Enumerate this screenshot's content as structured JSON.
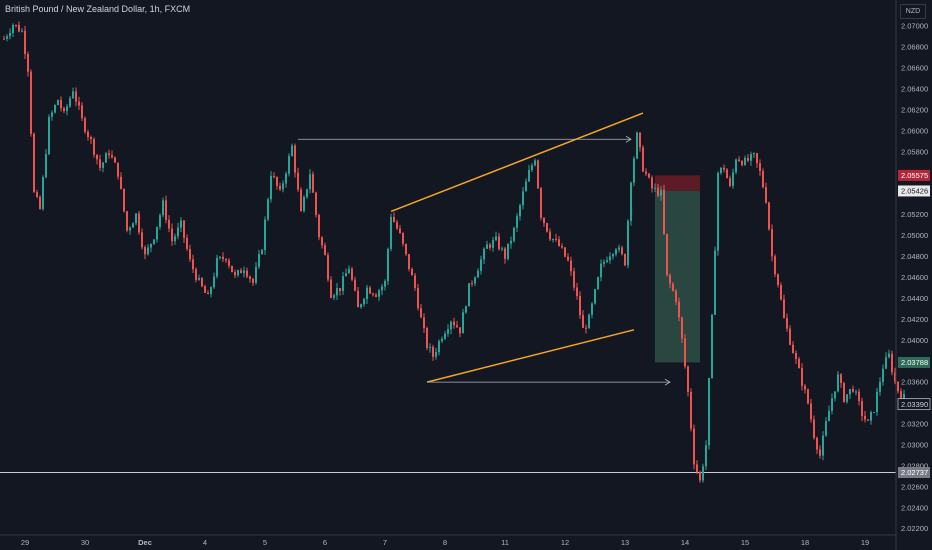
{
  "chart_title": "British Pound / New Zealand Dollar, 1h, FXCM",
  "currency_label": "NZD",
  "colors": {
    "background": "#131722",
    "bull": "#26a69a",
    "bear": "#ef5350",
    "grid_text": "#b2b5be",
    "channel": "#f5a623",
    "arrow": "#b2b5be",
    "horizontal_line": "#c8cbd3",
    "stop_zone": "#6b1d26",
    "target_zone": "#2f4f47"
  },
  "price_axis": {
    "ticks": [
      "2.07000",
      "2.06800",
      "2.06600",
      "2.06400",
      "2.06200",
      "2.06000",
      "2.05800",
      "2.05600",
      "2.05400",
      "2.05200",
      "2.05000",
      "2.04800",
      "2.04600",
      "2.04400",
      "2.04200",
      "2.04000",
      "2.03800",
      "2.03600",
      "2.03400",
      "2.03200",
      "2.03000",
      "2.02800",
      "2.02600",
      "2.02400",
      "2.02200"
    ],
    "badges": [
      {
        "label": "2.05575",
        "price": 2.05575,
        "style": "red"
      },
      {
        "label": "2.05426",
        "price": 2.05426,
        "style": "white"
      },
      {
        "label": "2.03788",
        "price": 2.03788,
        "style": "green"
      },
      {
        "label": "2.03390",
        "price": 2.0339,
        "style": "outline"
      },
      {
        "label": "2.02737",
        "price": 2.02737,
        "style": "grey"
      }
    ]
  },
  "time_axis": {
    "labels": [
      "29",
      "30",
      "Dec",
      "4",
      "5",
      "6",
      "7",
      "8",
      "11",
      "12",
      "13",
      "14",
      "15",
      "18",
      "19"
    ]
  },
  "chart_data": {
    "type": "candlestick",
    "title": "British Pound / New Zealand Dollar, 1h, FXCM",
    "ylim": [
      2.0214,
      2.0725
    ],
    "x_range": [
      0,
      300
    ],
    "x_tick_positions": [
      7,
      27,
      47,
      67,
      87,
      107,
      127,
      147,
      167,
      187,
      207,
      227,
      247,
      267,
      287
    ],
    "anchors": [
      [
        0,
        2.0688
      ],
      [
        3,
        2.0702
      ],
      [
        6,
        2.0695
      ],
      [
        8,
        2.066
      ],
      [
        10,
        2.054
      ],
      [
        12,
        2.0525
      ],
      [
        15,
        2.061
      ],
      [
        18,
        2.063
      ],
      [
        20,
        2.0615
      ],
      [
        23,
        2.064
      ],
      [
        26,
        2.061
      ],
      [
        29,
        2.059
      ],
      [
        32,
        2.0565
      ],
      [
        35,
        2.058
      ],
      [
        38,
        2.056
      ],
      [
        41,
        2.0505
      ],
      [
        44,
        2.052
      ],
      [
        47,
        2.048
      ],
      [
        50,
        2.05
      ],
      [
        53,
        2.053
      ],
      [
        56,
        2.0495
      ],
      [
        59,
        2.051
      ],
      [
        62,
        2.0475
      ],
      [
        65,
        2.0455
      ],
      [
        68,
        2.044
      ],
      [
        71,
        2.0475
      ],
      [
        74,
        2.048
      ],
      [
        77,
        2.046
      ],
      [
        80,
        2.047
      ],
      [
        83,
        2.0455
      ],
      [
        86,
        2.049
      ],
      [
        89,
        2.056
      ],
      [
        92,
        2.054
      ],
      [
        96,
        2.0585
      ],
      [
        99,
        2.052
      ],
      [
        102,
        2.056
      ],
      [
        105,
        2.05
      ],
      [
        107,
        2.048
      ],
      [
        109,
        2.0445
      ],
      [
        112,
        2.045
      ],
      [
        115,
        2.047
      ],
      [
        118,
        2.043
      ],
      [
        121,
        2.045
      ],
      [
        124,
        2.0445
      ],
      [
        127,
        2.0455
      ],
      [
        129,
        2.052
      ],
      [
        132,
        2.05
      ],
      [
        135,
        2.047
      ],
      [
        137,
        2.045
      ],
      [
        139,
        2.042
      ],
      [
        141,
        2.0395
      ],
      [
        143,
        2.0385
      ],
      [
        146,
        2.0405
      ],
      [
        149,
        2.042
      ],
      [
        152,
        2.041
      ],
      [
        155,
        2.045
      ],
      [
        158,
        2.047
      ],
      [
        161,
        2.049
      ],
      [
        164,
        2.0495
      ],
      [
        167,
        2.048
      ],
      [
        170,
        2.0505
      ],
      [
        173,
        2.054
      ],
      [
        175,
        2.056
      ],
      [
        177,
        2.0575
      ],
      [
        179,
        2.052
      ],
      [
        182,
        2.05
      ],
      [
        185,
        2.049
      ],
      [
        188,
        2.0475
      ],
      [
        191,
        2.044
      ],
      [
        193,
        2.041
      ],
      [
        195,
        2.042
      ],
      [
        197,
        2.0445
      ],
      [
        199,
        2.047
      ],
      [
        201,
        2.048
      ],
      [
        204,
        2.049
      ],
      [
        207,
        2.0475
      ],
      [
        209,
        2.0555
      ],
      [
        211,
        2.0595
      ],
      [
        213,
        2.0565
      ],
      [
        216,
        2.0545
      ],
      [
        219,
        2.054
      ],
      [
        221,
        2.046
      ],
      [
        224,
        2.044
      ],
      [
        226,
        2.04
      ],
      [
        228,
        2.035
      ],
      [
        230,
        2.0285
      ],
      [
        232,
        2.0265
      ],
      [
        234,
        2.03
      ],
      [
        236,
        2.042
      ],
      [
        238,
        2.056
      ],
      [
        240,
        2.0565
      ],
      [
        242,
        2.0545
      ],
      [
        244,
        2.0575
      ],
      [
        247,
        2.057
      ],
      [
        250,
        2.0575
      ],
      [
        252,
        2.056
      ],
      [
        254,
        2.0535
      ],
      [
        256,
        2.048
      ],
      [
        258,
        2.0455
      ],
      [
        260,
        2.042
      ],
      [
        262,
        2.04
      ],
      [
        264,
        2.038
      ],
      [
        266,
        2.036
      ],
      [
        268,
        2.034
      ],
      [
        270,
        2.031
      ],
      [
        272,
        2.029
      ],
      [
        274,
        2.032
      ],
      [
        276,
        2.0345
      ],
      [
        278,
        2.0365
      ],
      [
        280,
        2.0345
      ],
      [
        283,
        2.0355
      ],
      [
        286,
        2.033
      ],
      [
        288,
        2.032
      ],
      [
        290,
        2.0335
      ],
      [
        293,
        2.0375
      ],
      [
        295,
        2.0385
      ],
      [
        297,
        2.036
      ],
      [
        299,
        2.0345
      ]
    ],
    "annotations": {
      "channel_upper": [
        [
          129,
          2.0523
        ],
        [
          213,
          2.0617
        ]
      ],
      "channel_lower": [
        [
          141,
          2.036
        ],
        [
          210,
          2.041
        ]
      ],
      "arrow_top": [
        [
          98,
          2.0592
        ],
        [
          209,
          2.0592
        ]
      ],
      "arrow_bottom": [
        [
          141,
          2.036
        ],
        [
          222,
          2.036
        ]
      ],
      "stop_zone": {
        "x0": 217,
        "x1": 232,
        "y0": 2.05575,
        "y1": 2.05426
      },
      "target_zone": {
        "x0": 217,
        "x1": 232,
        "y0": 2.05426,
        "y1": 2.03788
      },
      "horizontal_line": 2.02737
    }
  }
}
